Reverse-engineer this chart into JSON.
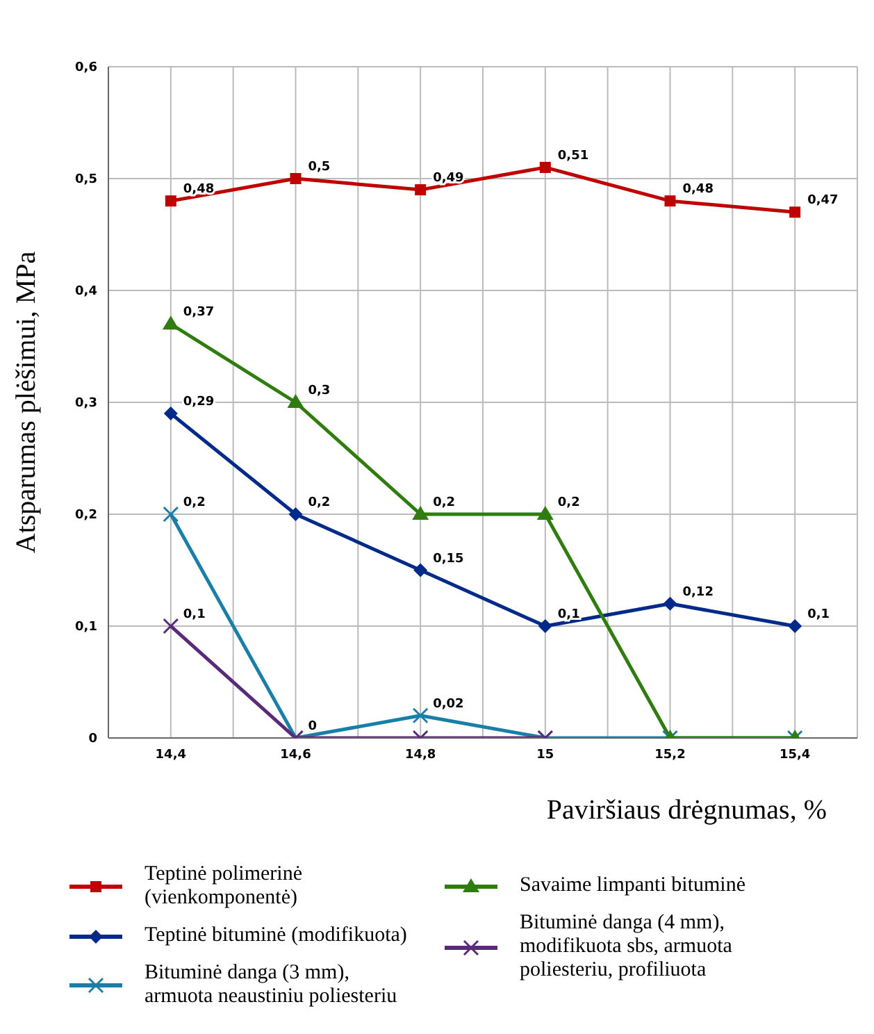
{
  "chart_data": {
    "type": "line",
    "xlabel": "Paviršiaus drėgnumas, %",
    "ylabel": "Atsparumas plėšimui, MPa",
    "x": [
      14.4,
      14.6,
      14.8,
      15,
      15.2,
      15.4
    ],
    "xlim": [
      14.3,
      15.5
    ],
    "xticks": [
      {
        "value": 14.3,
        "label": null
      },
      {
        "value": 14.4,
        "label": "14,4"
      },
      {
        "value": 14.5,
        "label": null
      },
      {
        "value": 14.6,
        "label": "14,6"
      },
      {
        "value": 14.7,
        "label": null
      },
      {
        "value": 14.8,
        "label": "14,8"
      },
      {
        "value": 14.9,
        "label": null
      },
      {
        "value": 15,
        "label": "15"
      },
      {
        "value": 15.1,
        "label": null
      },
      {
        "value": 15.2,
        "label": "15,2"
      },
      {
        "value": 15.3,
        "label": null
      },
      {
        "value": 15.4,
        "label": "15,4"
      },
      {
        "value": 15.5,
        "label": null
      }
    ],
    "ylim": [
      0,
      0.6
    ],
    "yticks": [
      0,
      {
        "value": 0.1,
        "label": "0,1"
      },
      {
        "value": 0.2,
        "label": "0,2"
      },
      {
        "value": 0.3,
        "label": "0,3"
      },
      {
        "value": 0.4,
        "label": "0,4"
      },
      {
        "value": 0.5,
        "label": "0,5"
      },
      {
        "value": 0.6,
        "label": "0,6"
      }
    ],
    "grid": true,
    "legend": "bottom",
    "series": [
      {
        "name": "Teptinė polimerinė (vienkomponentė)",
        "color": "#c00000",
        "marker": "square",
        "values": [
          0.48,
          0.5,
          0.49,
          0.51,
          0.48,
          0.47
        ],
        "value_labels": [
          "0,48",
          "0,5",
          "0,49",
          "0,51",
          "0,48",
          "0,47"
        ]
      },
      {
        "name": "Teptinė bituminė (modifikuota)",
        "color": "#002a8a",
        "marker": "diamond",
        "values": [
          0.29,
          0.2,
          0.15,
          0.1,
          0.12,
          0.1
        ],
        "value_labels": [
          "0,29",
          "0,2",
          "0,15",
          "0,1",
          "0,12",
          "0,1"
        ]
      },
      {
        "name": "Bituminė danga (3 mm), armuota neaustiniu poliesteriu",
        "color": "#1a7fa8",
        "marker": "cross",
        "values": [
          0.2,
          0,
          0.02,
          0,
          0,
          0
        ],
        "value_labels": [
          "0,2",
          "0",
          "0,02",
          null,
          null,
          null
        ]
      },
      {
        "name": "Savaime limpanti bituminė",
        "color": "#2e7d0e",
        "marker": "triangle",
        "values": [
          0.37,
          0.3,
          0.2,
          0.2,
          0,
          0
        ],
        "value_labels": [
          "0,37",
          "0,3",
          "0,2",
          "0,2",
          null,
          null
        ]
      },
      {
        "name": "Bituminė danga (4 mm), modifikuota sbs, armuota poliesteriu, profiliuota",
        "color": "#5a2a7a",
        "marker": "cross",
        "values": [
          0.1,
          0,
          0,
          0,
          null,
          null
        ],
        "value_labels": [
          "0,1",
          null,
          null,
          null,
          null,
          null
        ]
      }
    ]
  }
}
